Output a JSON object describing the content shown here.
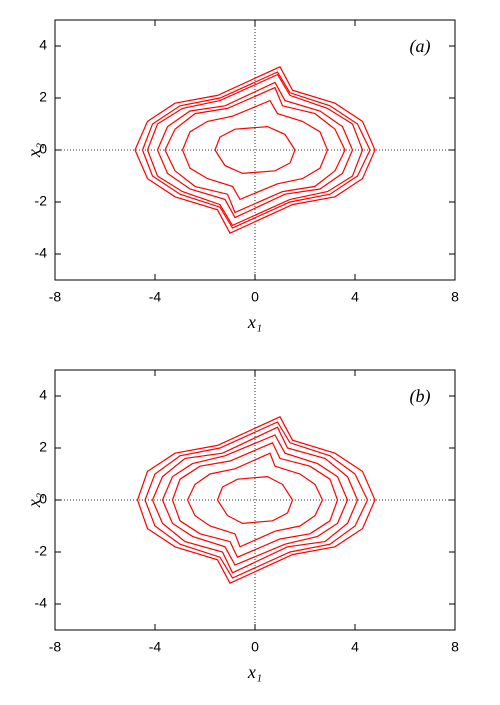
{
  "chart_data": [
    {
      "type": "line",
      "annotation": "(a)",
      "xlabel": "x₁",
      "ylabel": "x₂",
      "xlim": [
        -8,
        8
      ],
      "ylim": [
        -5,
        5
      ],
      "xticks": [
        -8,
        -4,
        0,
        4,
        8
      ],
      "yticks": [
        -4,
        -2,
        0,
        2,
        4
      ],
      "zeroaxis": true,
      "series": [
        {
          "color": "#ff0000",
          "x": [
            -4.8,
            -4.3,
            -3.2,
            -1.5,
            1,
            1.5,
            3.2,
            4.3,
            4.8,
            4.3,
            3.2,
            1.5,
            -1,
            -1.5,
            -3.2,
            -4.3,
            -4.8
          ],
          "values": [
            0,
            1.1,
            1.8,
            2.1,
            3.2,
            2.3,
            1.8,
            1.1,
            0,
            -1.1,
            -1.8,
            -2.1,
            -3.2,
            -2.3,
            -1.8,
            -1.1,
            0
          ]
        },
        {
          "color": "#ff0000",
          "x": [
            -4.5,
            -4.1,
            -3.0,
            -1.4,
            0.9,
            1.4,
            3.0,
            4.1,
            4.6,
            4.1,
            3.0,
            1.4,
            -0.9,
            -1.4,
            -3.0,
            -4.1,
            -4.5
          ],
          "values": [
            0,
            1.0,
            1.7,
            2.0,
            3.0,
            2.2,
            1.7,
            1.0,
            0,
            -1.0,
            -1.7,
            -2.0,
            -3.0,
            -2.2,
            -1.7,
            -1.0,
            0
          ]
        },
        {
          "color": "#ff0000",
          "x": [
            -4.3,
            -3.9,
            -2.9,
            -1.4,
            0.9,
            1.4,
            2.9,
            3.9,
            4.3,
            3.9,
            2.9,
            1.4,
            -0.9,
            -1.4,
            -2.9,
            -3.9,
            -4.3
          ],
          "values": [
            0,
            1.0,
            1.6,
            1.9,
            2.9,
            2.1,
            1.6,
            1.0,
            0,
            -1.0,
            -1.6,
            -1.9,
            -2.9,
            -2.1,
            -1.6,
            -1.0,
            0
          ]
        },
        {
          "color": "#ff0000",
          "x": [
            -3.9,
            -3.5,
            -2.6,
            -1.2,
            0.8,
            1.2,
            2.6,
            3.5,
            3.9,
            3.5,
            2.6,
            1.2,
            -0.8,
            -1.2,
            -2.6,
            -3.5,
            -3.9
          ],
          "values": [
            0,
            0.9,
            1.5,
            1.7,
            2.6,
            1.9,
            1.5,
            0.9,
            0,
            -0.9,
            -1.5,
            -1.7,
            -2.6,
            -1.9,
            -1.5,
            -0.9,
            0
          ]
        },
        {
          "color": "#ff0000",
          "x": [
            -3.6,
            -3.2,
            -2.4,
            -1.1,
            0.8,
            1.1,
            2.4,
            3.2,
            3.6,
            3.2,
            2.4,
            1.1,
            -0.8,
            -1.1,
            -2.4,
            -3.2,
            -3.6
          ],
          "values": [
            0,
            0.8,
            1.4,
            1.6,
            2.4,
            1.7,
            1.4,
            0.8,
            0,
            -0.8,
            -1.4,
            -1.6,
            -2.4,
            -1.7,
            -1.4,
            -0.8,
            0
          ]
        },
        {
          "color": "#ff0000",
          "x": [
            -2.9,
            -2.6,
            -1.9,
            -0.9,
            0.6,
            0.9,
            1.9,
            2.6,
            2.9,
            2.6,
            1.9,
            0.9,
            -0.6,
            -0.9,
            -1.9,
            -2.6,
            -2.9
          ],
          "values": [
            0,
            0.7,
            1.1,
            1.3,
            1.9,
            1.4,
            1.1,
            0.7,
            0,
            -0.7,
            -1.1,
            -1.3,
            -1.9,
            -1.4,
            -1.1,
            -0.7,
            0
          ]
        },
        {
          "color": "#ff0000",
          "x": [
            -1.6,
            -1.4,
            -0.8,
            0.5,
            1.2,
            1.6,
            1.4,
            0.8,
            -0.5,
            -1.2,
            -1.6
          ],
          "values": [
            0,
            0.5,
            0.8,
            0.9,
            0.6,
            0,
            -0.5,
            -0.8,
            -0.9,
            -0.6,
            0
          ]
        }
      ]
    },
    {
      "type": "line",
      "annotation": "(b)",
      "xlabel": "x₁",
      "ylabel": "x₂",
      "xlim": [
        -8,
        8
      ],
      "ylim": [
        -5,
        5
      ],
      "xticks": [
        -8,
        -4,
        0,
        4,
        8
      ],
      "yticks": [
        -4,
        -2,
        0,
        2,
        4
      ],
      "zeroaxis": true,
      "series": [
        {
          "color": "#ff0000",
          "x": [
            -4.7,
            -4.3,
            -3.2,
            -1.5,
            1,
            1.5,
            3.2,
            4.3,
            4.8,
            4.3,
            3.2,
            1.5,
            -1,
            -1.5,
            -3.2,
            -4.3,
            -4.7
          ],
          "values": [
            0,
            1.1,
            1.8,
            2.1,
            3.2,
            2.3,
            1.8,
            1.1,
            0,
            -1.1,
            -1.8,
            -2.1,
            -3.2,
            -2.3,
            -1.8,
            -1.1,
            0
          ]
        },
        {
          "color": "#ff0000",
          "x": [
            -4.4,
            -4.0,
            -3.0,
            -1.4,
            0.9,
            1.4,
            3.0,
            4.0,
            4.5,
            4.0,
            3.0,
            1.4,
            -0.9,
            -1.4,
            -3.0,
            -4.0,
            -4.4
          ],
          "values": [
            0,
            1.0,
            1.7,
            2.0,
            3.0,
            2.2,
            1.7,
            1.0,
            0,
            -1.0,
            -1.7,
            -2.0,
            -3.0,
            -2.2,
            -1.7,
            -1.0,
            0
          ]
        },
        {
          "color": "#ff0000",
          "x": [
            -4.1,
            -3.7,
            -2.8,
            -1.3,
            0.9,
            1.3,
            2.8,
            3.7,
            4.1,
            3.7,
            2.8,
            1.3,
            -0.9,
            -1.3,
            -2.8,
            -3.7,
            -4.1
          ],
          "values": [
            0,
            0.9,
            1.6,
            1.8,
            2.8,
            2.0,
            1.6,
            0.9,
            0,
            -0.9,
            -1.6,
            -1.8,
            -2.8,
            -2.0,
            -1.6,
            -0.9,
            0
          ]
        },
        {
          "color": "#ff0000",
          "x": [
            -3.7,
            -3.3,
            -2.5,
            -1.2,
            0.8,
            1.2,
            2.5,
            3.3,
            3.7,
            3.3,
            2.5,
            1.2,
            -0.8,
            -1.2,
            -2.5,
            -3.3,
            -3.7
          ],
          "values": [
            0,
            0.9,
            1.4,
            1.7,
            2.5,
            1.8,
            1.4,
            0.9,
            0,
            -0.9,
            -1.4,
            -1.7,
            -2.5,
            -1.8,
            -1.4,
            -0.9,
            0
          ]
        },
        {
          "color": "#ff0000",
          "x": [
            -3.3,
            -3.0,
            -2.2,
            -1.0,
            0.7,
            1.0,
            2.2,
            3.0,
            3.3,
            3.0,
            2.2,
            1.0,
            -0.7,
            -1.0,
            -2.2,
            -3.0,
            -3.3
          ],
          "values": [
            0,
            0.8,
            1.3,
            1.5,
            2.2,
            1.6,
            1.3,
            0.8,
            0,
            -0.8,
            -1.3,
            -1.5,
            -2.2,
            -1.6,
            -1.3,
            -0.8,
            0
          ]
        },
        {
          "color": "#ff0000",
          "x": [
            -2.7,
            -2.4,
            -1.8,
            -0.8,
            0.6,
            0.8,
            1.8,
            2.4,
            2.7,
            2.4,
            1.8,
            0.8,
            -0.6,
            -0.8,
            -1.8,
            -2.4,
            -2.7
          ],
          "values": [
            0,
            0.6,
            1.0,
            1.2,
            1.8,
            1.3,
            1.0,
            0.6,
            0,
            -0.6,
            -1.0,
            -1.2,
            -1.8,
            -1.3,
            -1.0,
            -0.6,
            0
          ]
        },
        {
          "color": "#ff0000",
          "x": [
            -1.5,
            -1.3,
            -0.7,
            0.5,
            1.1,
            1.5,
            1.3,
            0.7,
            -0.5,
            -1.1,
            -1.5
          ],
          "values": [
            0,
            0.5,
            0.8,
            0.9,
            0.6,
            0,
            -0.5,
            -0.8,
            -0.9,
            -0.6,
            0
          ]
        }
      ]
    }
  ]
}
